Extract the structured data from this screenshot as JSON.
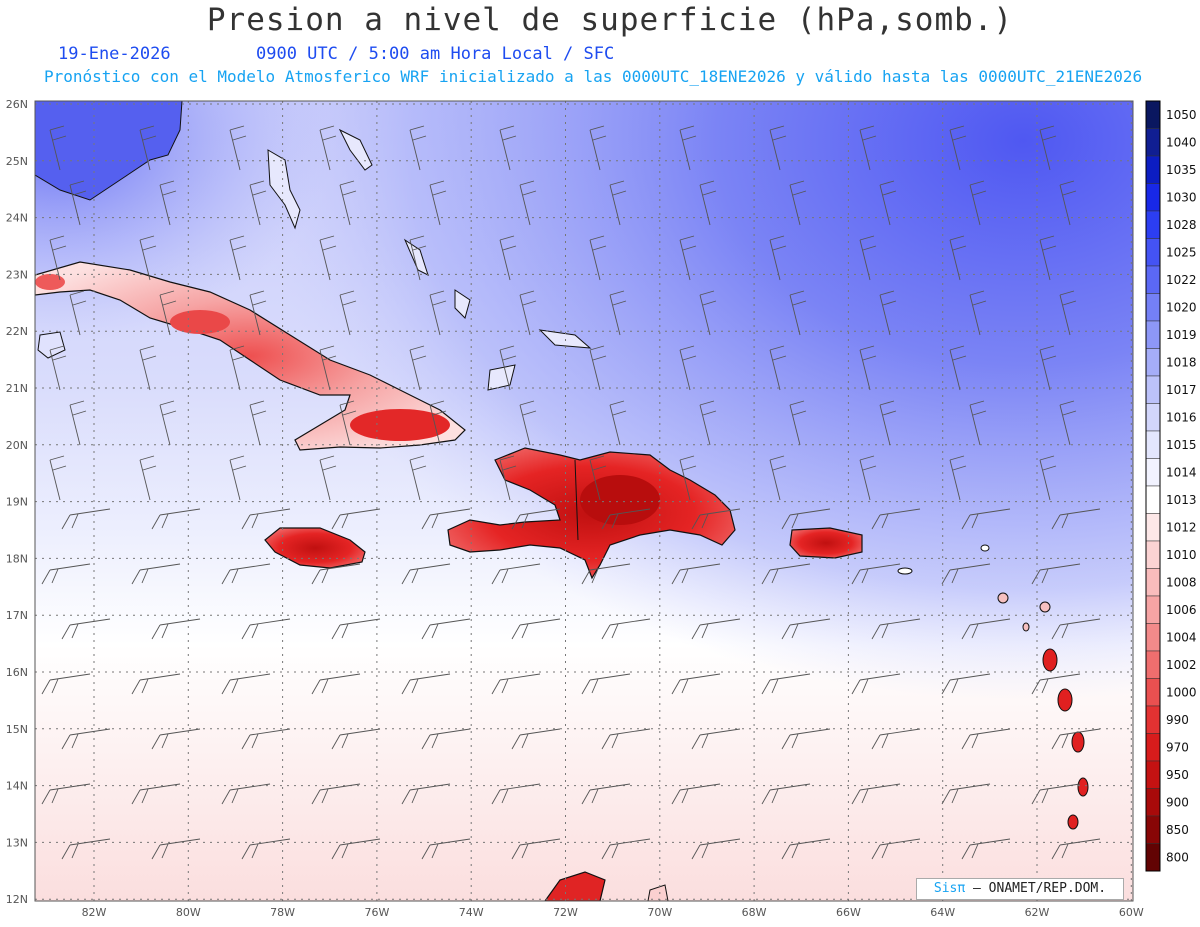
{
  "title": "Presion a nivel de superficie (hPa,somb.)",
  "date": "19-Ene-2026",
  "time_line": "0900 UTC / 5:00 am Hora Local / SFC",
  "subtitle": "Pronóstico con el Modelo Atmosferico WRF inicializado a las 0000UTC_18ENE2026 y válido hasta las  0000UTC_21ENE2026",
  "credit": {
    "brand": "Sisπ",
    "org": "– ONAMET/REP.DOM."
  },
  "axes": {
    "lat_labels": [
      "26N",
      "25N",
      "24N",
      "23N",
      "22N",
      "21N",
      "20N",
      "19N",
      "18N",
      "17N",
      "16N",
      "15N",
      "14N",
      "13N",
      "12N"
    ],
    "lon_labels": [
      "82W",
      "80W",
      "78W",
      "76W",
      "74W",
      "72W",
      "70W",
      "68W",
      "66W",
      "64W",
      "62W",
      "60W"
    ]
  },
  "colorbar": {
    "levels": [
      "1050",
      "1040",
      "1035",
      "1030",
      "1028",
      "1025",
      "1022",
      "1020",
      "1019",
      "1018",
      "1017",
      "1016",
      "1015",
      "1014",
      "1013",
      "1012",
      "1010",
      "1008",
      "1006",
      "1004",
      "1002",
      "1000",
      "990",
      "970",
      "950",
      "900",
      "850",
      "800"
    ],
    "colors": [
      "#0a1760",
      "#101e92",
      "#0c1dc2",
      "#1828e8",
      "#2c3ef2",
      "#4453f4",
      "#5b68f5",
      "#7480f6",
      "#8d97f7",
      "#a5adf8",
      "#bcc2fa",
      "#d2d6fb",
      "#e3e6fd",
      "#f2f3ff",
      "#ffffff",
      "#fde8e8",
      "#fbd3d3",
      "#f9bcbc",
      "#f6a4a4",
      "#f38a8a",
      "#ef6e6e",
      "#ea5050",
      "#e33232",
      "#d81c1c",
      "#c41212",
      "#a80a0a",
      "#880606",
      "#620303"
    ]
  },
  "legend_colors": {
    "land_high": "#e01818",
    "sea_high": "#5d66f2",
    "sea_low": "#fbd8d8"
  }
}
